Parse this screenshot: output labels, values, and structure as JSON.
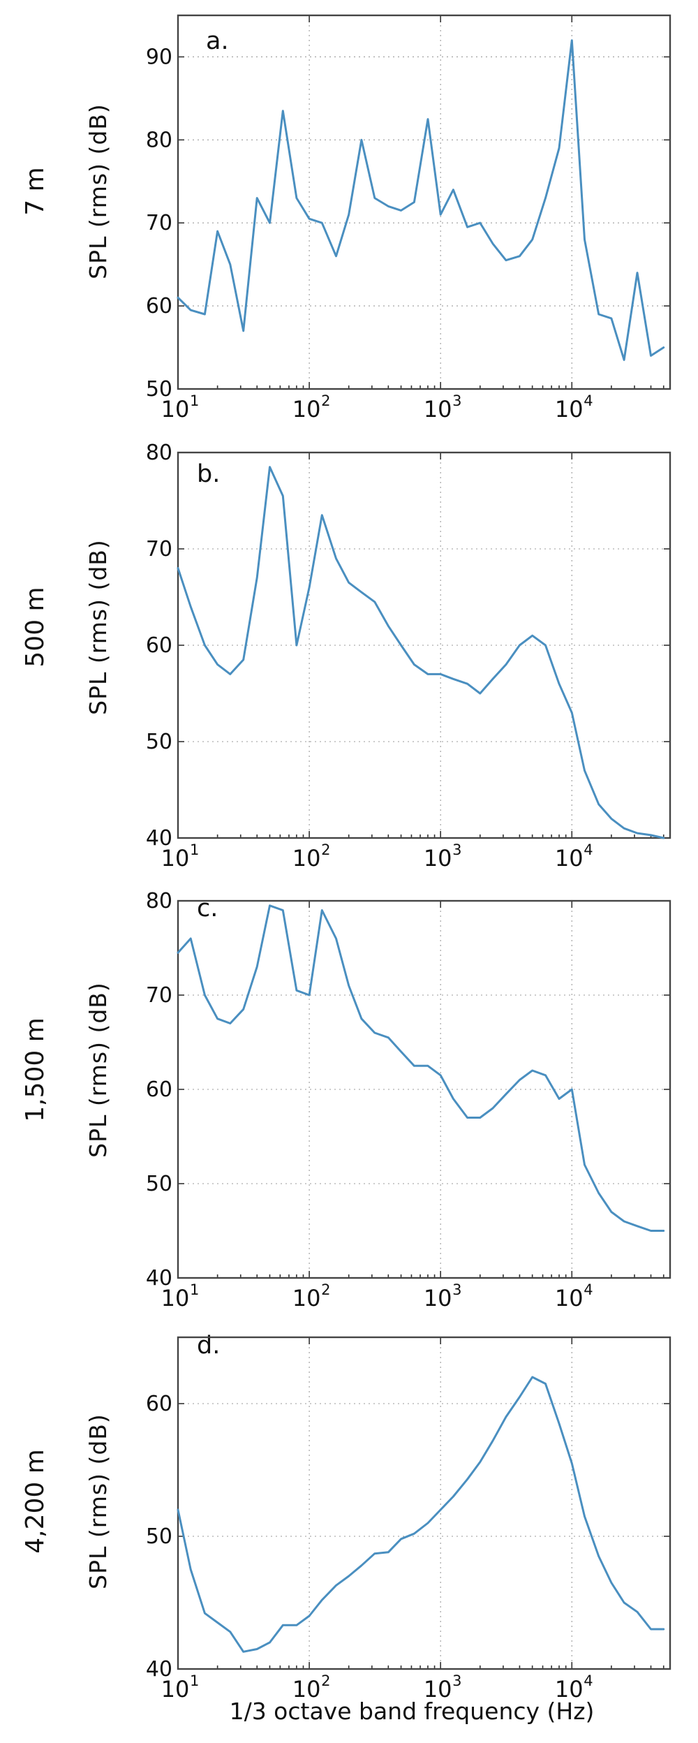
{
  "chart_data": [
    {
      "type": "line",
      "panel_label": "a.",
      "row_label": "7 m",
      "ylabel": "SPL (rms) (dB)",
      "xlabel": "",
      "x_scale": "log",
      "xlim": [
        10,
        56000
      ],
      "ylim": [
        50,
        95
      ],
      "yticks": [
        50,
        60,
        70,
        80,
        90
      ],
      "xticks": [
        {
          "base": "10",
          "exp": "1"
        },
        {
          "base": "10",
          "exp": "2"
        },
        {
          "base": "10",
          "exp": "3"
        },
        {
          "base": "10",
          "exp": "4"
        }
      ],
      "grid": true,
      "x": [
        10,
        12.5,
        16,
        20,
        25,
        31.5,
        40,
        50,
        63,
        80,
        100,
        125,
        160,
        200,
        250,
        315,
        400,
        500,
        630,
        800,
        1000,
        1250,
        1600,
        2000,
        2500,
        3150,
        4000,
        5000,
        6300,
        8000,
        10000,
        12500,
        16000,
        20000,
        25000,
        31500,
        40000,
        50000
      ],
      "series": [
        {
          "values": [
            61,
            59.5,
            59,
            69,
            65,
            57,
            73,
            70,
            83.5,
            73,
            70.5,
            70,
            66,
            71,
            80,
            73,
            72,
            71.5,
            72.5,
            82.5,
            71,
            74,
            69.5,
            70,
            67.5,
            65.5,
            66,
            68,
            73,
            79,
            92,
            68,
            59,
            58.5,
            53.5,
            64,
            54,
            55
          ]
        }
      ]
    },
    {
      "type": "line",
      "panel_label": "b.",
      "row_label": "500 m",
      "ylabel": "SPL (rms) (dB)",
      "xlabel": "",
      "x_scale": "log",
      "xlim": [
        10,
        56000
      ],
      "ylim": [
        40,
        80
      ],
      "yticks": [
        40,
        50,
        60,
        70,
        80
      ],
      "xticks": [
        {
          "base": "10",
          "exp": "1"
        },
        {
          "base": "10",
          "exp": "2"
        },
        {
          "base": "10",
          "exp": "3"
        },
        {
          "base": "10",
          "exp": "4"
        }
      ],
      "grid": true,
      "x": [
        10,
        12.5,
        16,
        20,
        25,
        31.5,
        40,
        50,
        63,
        80,
        100,
        125,
        160,
        200,
        250,
        315,
        400,
        500,
        630,
        800,
        1000,
        1250,
        1600,
        2000,
        2500,
        3150,
        4000,
        5000,
        6300,
        8000,
        10000,
        12500,
        16000,
        20000,
        25000,
        31500,
        40000,
        50000
      ],
      "series": [
        {
          "values": [
            68,
            64,
            60,
            58,
            57,
            58.5,
            67,
            78.5,
            75.5,
            60,
            66,
            73.5,
            69,
            66.5,
            65.5,
            64.5,
            62,
            60,
            58,
            57,
            57,
            56.5,
            56,
            55,
            56.5,
            58,
            60,
            61,
            60,
            56,
            53,
            47,
            43.5,
            42,
            41,
            40.5,
            40.3,
            40
          ]
        }
      ]
    },
    {
      "type": "line",
      "panel_label": "c.",
      "row_label": "1,500 m",
      "ylabel": "SPL (rms) (dB)",
      "xlabel": "",
      "x_scale": "log",
      "xlim": [
        10,
        56000
      ],
      "ylim": [
        40,
        80
      ],
      "yticks": [
        40,
        50,
        60,
        70,
        80
      ],
      "xticks": [
        {
          "base": "10",
          "exp": "1"
        },
        {
          "base": "10",
          "exp": "2"
        },
        {
          "base": "10",
          "exp": "3"
        },
        {
          "base": "10",
          "exp": "4"
        }
      ],
      "grid": true,
      "x": [
        10,
        12.5,
        16,
        20,
        25,
        31.5,
        40,
        50,
        63,
        80,
        100,
        125,
        160,
        200,
        250,
        315,
        400,
        500,
        630,
        800,
        1000,
        1250,
        1600,
        2000,
        2500,
        3150,
        4000,
        5000,
        6300,
        8000,
        10000,
        12500,
        16000,
        20000,
        25000,
        31500,
        40000,
        50000
      ],
      "series": [
        {
          "values": [
            74.5,
            76,
            70,
            67.5,
            67,
            68.5,
            73,
            79.5,
            79,
            70.5,
            70,
            79,
            76,
            71,
            67.5,
            66,
            65.5,
            64,
            62.5,
            62.5,
            61.5,
            59,
            57,
            57,
            58,
            59.5,
            61,
            62,
            61.5,
            59,
            60,
            52,
            49,
            47,
            46,
            45.5,
            45,
            45
          ]
        }
      ]
    },
    {
      "type": "line",
      "panel_label": "d.",
      "row_label": "4,200 m",
      "ylabel": "SPL (rms) (dB)",
      "xlabel": "1/3 octave band frequency (Hz)",
      "x_scale": "log",
      "xlim": [
        10,
        56000
      ],
      "ylim": [
        40,
        65
      ],
      "yticks": [
        40,
        50,
        60
      ],
      "xticks": [
        {
          "base": "10",
          "exp": "1"
        },
        {
          "base": "10",
          "exp": "2"
        },
        {
          "base": "10",
          "exp": "3"
        },
        {
          "base": "10",
          "exp": "4"
        }
      ],
      "grid": true,
      "x": [
        10,
        12.5,
        16,
        20,
        25,
        31.5,
        40,
        50,
        63,
        80,
        100,
        125,
        160,
        200,
        250,
        315,
        400,
        500,
        630,
        800,
        1000,
        1250,
        1600,
        2000,
        2500,
        3150,
        4000,
        5000,
        6300,
        8000,
        10000,
        12500,
        16000,
        20000,
        25000,
        31500,
        40000,
        50000
      ],
      "series": [
        {
          "values": [
            52,
            47.5,
            44.2,
            43.5,
            42.8,
            41.3,
            41.5,
            42,
            43.3,
            43.3,
            44,
            45.2,
            46.3,
            47,
            47.8,
            48.7,
            48.8,
            49.8,
            50.2,
            51,
            52,
            53,
            54.3,
            55.6,
            57.2,
            59,
            60.5,
            62,
            61.5,
            58.5,
            55.5,
            51.5,
            48.5,
            46.5,
            45,
            44.3,
            43,
            43
          ]
        }
      ]
    }
  ]
}
